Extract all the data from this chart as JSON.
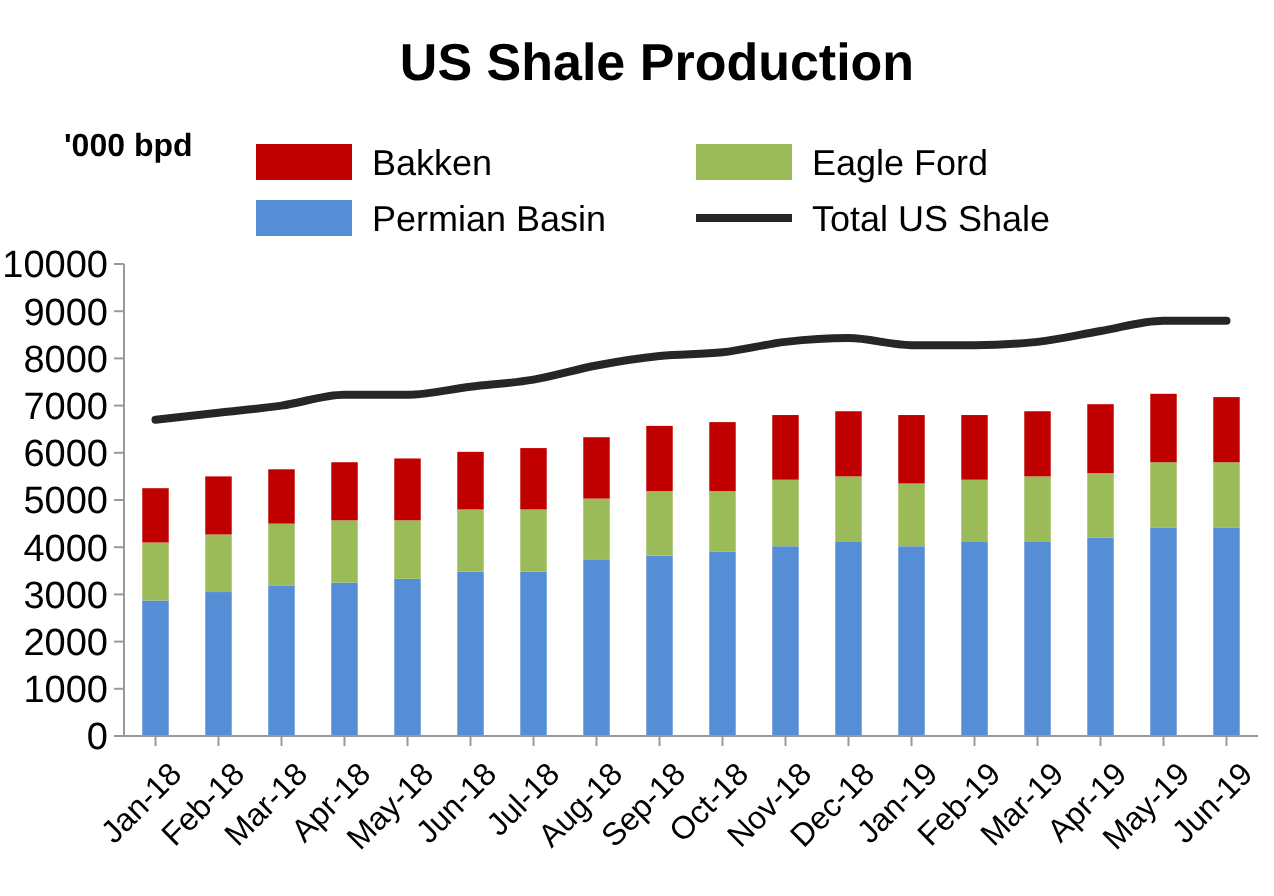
{
  "chart_data": {
    "type": "bar",
    "title": "US Shale Production",
    "ylabel": "'000 bpd",
    "stacked": true,
    "legend": "top",
    "grid": false,
    "categories": [
      "Jan-18",
      "Feb-18",
      "Mar-18",
      "Apr-18",
      "May-18",
      "Jun-18",
      "Jul-18",
      "Aug-18",
      "Sep-18",
      "Oct-18",
      "Nov-18",
      "Dec-18",
      "Jan-19",
      "Feb-19",
      "Mar-19",
      "Apr-19",
      "May-19",
      "Jun-19"
    ],
    "series": [
      {
        "name": "Permian Basin",
        "color": "#558ed5",
        "values": [
          2870,
          3050,
          3180,
          3250,
          3330,
          3480,
          3480,
          3730,
          3820,
          3910,
          4020,
          4110,
          4020,
          4110,
          4110,
          4200,
          4420,
          4420
        ]
      },
      {
        "name": "Eagle Ford",
        "color": "#9bbb59",
        "values": [
          1230,
          1220,
          1320,
          1320,
          1240,
          1320,
          1320,
          1300,
          1370,
          1280,
          1410,
          1390,
          1330,
          1320,
          1390,
          1370,
          1380,
          1380
        ]
      },
      {
        "name": "Bakken",
        "color": "#c00000",
        "values": [
          1150,
          1230,
          1150,
          1230,
          1310,
          1220,
          1300,
          1300,
          1380,
          1460,
          1370,
          1380,
          1450,
          1370,
          1380,
          1460,
          1450,
          1380
        ]
      },
      {
        "name": "Total US Shale",
        "type": "line",
        "color": "#262626",
        "values": [
          6700,
          6850,
          7000,
          7230,
          7230,
          7400,
          7550,
          7850,
          8050,
          8130,
          8350,
          8430,
          8280,
          8280,
          8350,
          8580,
          8800,
          8800
        ]
      }
    ],
    "ylim": [
      0,
      10000
    ],
    "yticks": [
      0,
      1000,
      2000,
      3000,
      4000,
      5000,
      6000,
      7000,
      8000,
      9000,
      10000
    ]
  }
}
